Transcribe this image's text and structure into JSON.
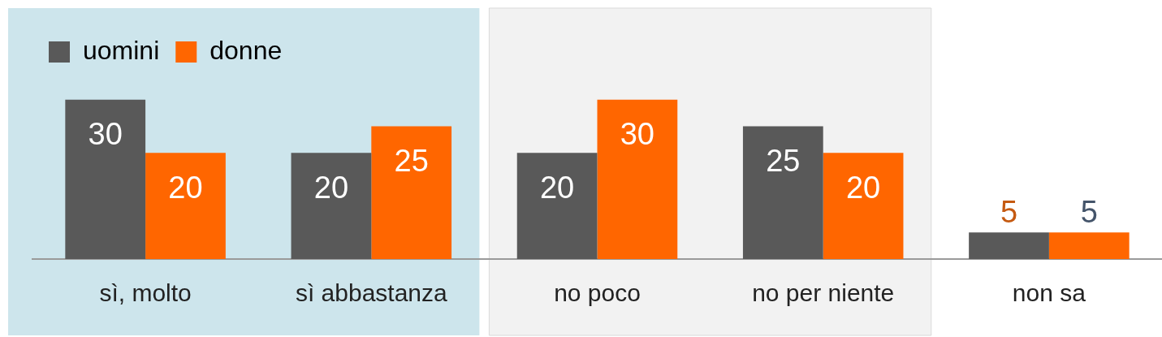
{
  "chart_data": {
    "type": "bar",
    "categories": [
      "sì, molto",
      "sì abbastanza",
      "no poco",
      "no per niente",
      "non sa"
    ],
    "series": [
      {
        "name": "uomini",
        "color": "#595959",
        "values": [
          30,
          20,
          20,
          25,
          5
        ]
      },
      {
        "name": "donne",
        "color": "#ff6600",
        "values": [
          20,
          25,
          30,
          20,
          5
        ]
      }
    ],
    "bands": [
      {
        "axis": "x",
        "from": "sì, molto",
        "to": "sì abbastanza",
        "color": "#cde5ec"
      },
      {
        "axis": "x",
        "from": "no poco",
        "to": "no per niente",
        "color": "#f2f2f2"
      }
    ],
    "data_labels": true,
    "legend": "top left",
    "grid": false
  }
}
